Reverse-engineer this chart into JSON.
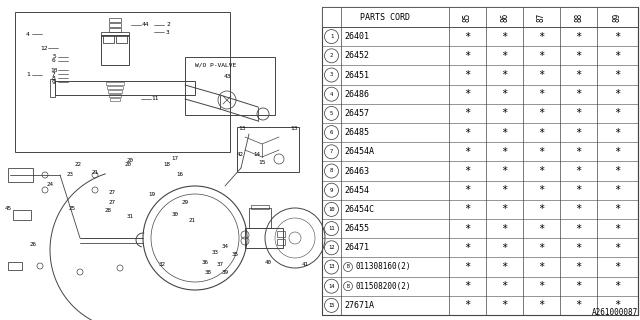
{
  "bg_color": "#ffffff",
  "line_color": "#444444",
  "text_color": "#000000",
  "rows": [
    [
      "1",
      "26401",
      "*",
      "*",
      "*",
      "*",
      "*"
    ],
    [
      "2",
      "26452",
      "*",
      "*",
      "*",
      "*",
      "*"
    ],
    [
      "3",
      "26451",
      "*",
      "*",
      "*",
      "*",
      "*"
    ],
    [
      "4",
      "26486",
      "*",
      "*",
      "*",
      "*",
      "*"
    ],
    [
      "5",
      "26457",
      "*",
      "*",
      "*",
      "*",
      "*"
    ],
    [
      "6",
      "26485",
      "*",
      "*",
      "*",
      "*",
      "*"
    ],
    [
      "7",
      "26454A",
      "*",
      "*",
      "*",
      "*",
      "*"
    ],
    [
      "8",
      "26463",
      "*",
      "*",
      "*",
      "*",
      "*"
    ],
    [
      "9",
      "26454",
      "*",
      "*",
      "*",
      "*",
      "*"
    ],
    [
      "10",
      "26454C",
      "*",
      "*",
      "*",
      "*",
      "*"
    ],
    [
      "11",
      "26455",
      "*",
      "*",
      "*",
      "*",
      "*"
    ],
    [
      "12",
      "26471",
      "*",
      "*",
      "*",
      "*",
      "*"
    ],
    [
      "13",
      "B011308160(2)",
      "*",
      "*",
      "*",
      "*",
      "*"
    ],
    [
      "14",
      "B011508200(2)",
      "*",
      "*",
      "*",
      "*",
      "*"
    ],
    [
      "15",
      "27671A",
      "*",
      "*",
      "*",
      "*",
      "*"
    ]
  ],
  "years": [
    "85",
    "86",
    "87",
    "88",
    "89"
  ],
  "footer_text": "A261000087",
  "table_font_size": 6.0,
  "small_font_size": 5.0,
  "label_font_size": 4.5
}
